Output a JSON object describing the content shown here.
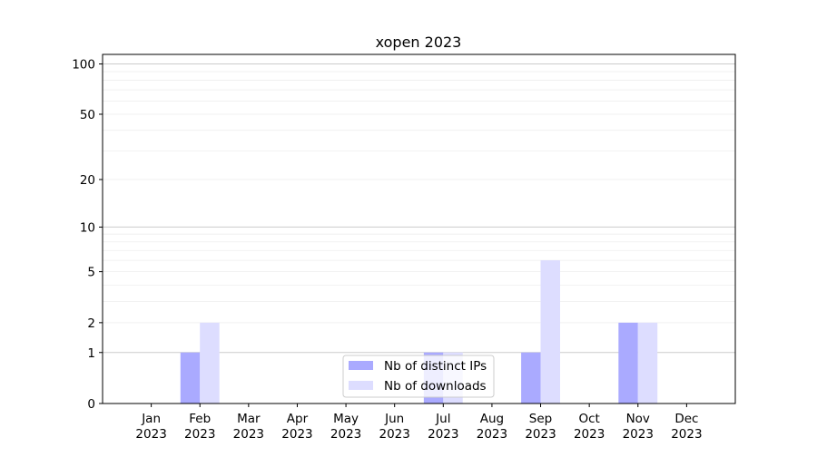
{
  "chart_data": {
    "type": "bar",
    "title": "xopen 2023",
    "xlabel": "",
    "ylabel": "",
    "yscale": "log(1+y)",
    "ylim": [
      0,
      114
    ],
    "yticks": [
      0,
      1,
      2,
      5,
      10,
      20,
      50,
      100
    ],
    "grid": true,
    "legend_position": "lower-center",
    "categories": [
      "Jan\n2023",
      "Feb\n2023",
      "Mar\n2023",
      "Apr\n2023",
      "May\n2023",
      "Jun\n2023",
      "Jul\n2023",
      "Aug\n2023",
      "Sep\n2023",
      "Oct\n2023",
      "Nov\n2023",
      "Dec\n2023"
    ],
    "series": [
      {
        "name": "Nb of distinct IPs",
        "color": "#aaaaff",
        "values": [
          0,
          1,
          0,
          0,
          0,
          0,
          1,
          0,
          1,
          0,
          2,
          0
        ]
      },
      {
        "name": "Nb of downloads",
        "color": "#ddddff",
        "values": [
          0,
          2,
          0,
          0,
          0,
          0,
          1,
          0,
          6,
          0,
          2,
          0
        ]
      }
    ]
  }
}
